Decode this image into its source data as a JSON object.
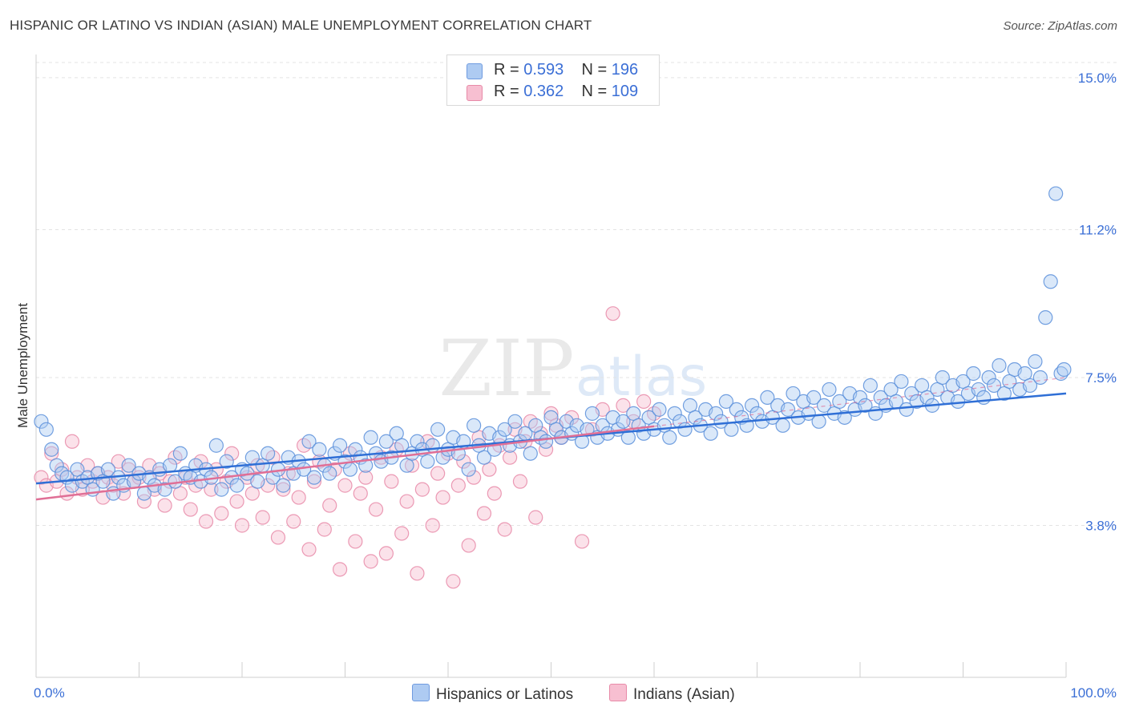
{
  "title": "HISPANIC OR LATINO VS INDIAN (ASIAN) MALE UNEMPLOYMENT CORRELATION CHART",
  "source": "Source: ZipAtlas.com",
  "watermark": {
    "zip": "ZIP",
    "atlas": "atlas"
  },
  "legend": {
    "r_label": "R =",
    "n_label": "N =",
    "rows": [
      {
        "r": "0.593",
        "n": "196",
        "fill": "#aecbf2",
        "stroke": "#6f9be0"
      },
      {
        "r": "0.362",
        "n": "109",
        "fill": "#f7bfd1",
        "stroke": "#e88aa8"
      }
    ]
  },
  "chart_data": {
    "type": "scatter",
    "ylabel": "Male Unemployment",
    "x_tick_labels": [
      "0.0%",
      "100.0%"
    ],
    "y_tick_labels": [
      "15.0%",
      "11.2%",
      "7.5%",
      "3.8%"
    ],
    "xlim": [
      0,
      100
    ],
    "ylim": [
      0,
      15.5
    ],
    "y_gridlines": [
      3.8,
      7.5,
      11.2,
      15.0
    ],
    "grid": true,
    "series": [
      {
        "name": "Hispanics or Latinos",
        "color": "#5b8fdb",
        "fill": "#aecbf2",
        "trend": {
          "x": [
            0,
            100
          ],
          "y": [
            4.85,
            7.1
          ],
          "color": "#2f6fd6"
        },
        "points": [
          [
            0.5,
            6.4
          ],
          [
            1.0,
            6.2
          ],
          [
            1.5,
            5.7
          ],
          [
            2.0,
            5.3
          ],
          [
            2.5,
            5.1
          ],
          [
            3.0,
            5.0
          ],
          [
            3.5,
            4.8
          ],
          [
            4.0,
            5.2
          ],
          [
            4.5,
            4.9
          ],
          [
            5.0,
            5.0
          ],
          [
            5.5,
            4.7
          ],
          [
            6.0,
            5.1
          ],
          [
            6.5,
            4.9
          ],
          [
            7.0,
            5.2
          ],
          [
            7.5,
            4.6
          ],
          [
            8.0,
            5.0
          ],
          [
            8.5,
            4.8
          ],
          [
            9.0,
            5.3
          ],
          [
            9.5,
            4.9
          ],
          [
            10.0,
            5.1
          ],
          [
            10.5,
            4.6
          ],
          [
            11.0,
            5.0
          ],
          [
            11.5,
            4.8
          ],
          [
            12.0,
            5.2
          ],
          [
            12.5,
            4.7
          ],
          [
            13.0,
            5.3
          ],
          [
            13.5,
            4.9
          ],
          [
            14.0,
            5.6
          ],
          [
            14.5,
            5.1
          ],
          [
            15.0,
            5.0
          ],
          [
            15.5,
            5.3
          ],
          [
            16.0,
            4.9
          ],
          [
            16.5,
            5.2
          ],
          [
            17.0,
            5.0
          ],
          [
            17.5,
            5.8
          ],
          [
            18.0,
            4.7
          ],
          [
            18.5,
            5.4
          ],
          [
            19.0,
            5.0
          ],
          [
            19.5,
            4.8
          ],
          [
            20.0,
            5.2
          ],
          [
            20.5,
            5.1
          ],
          [
            21.0,
            5.5
          ],
          [
            21.5,
            4.9
          ],
          [
            22.0,
            5.3
          ],
          [
            22.5,
            5.6
          ],
          [
            23.0,
            5.0
          ],
          [
            23.5,
            5.2
          ],
          [
            24.0,
            4.8
          ],
          [
            24.5,
            5.5
          ],
          [
            25.0,
            5.1
          ],
          [
            25.5,
            5.4
          ],
          [
            26.0,
            5.2
          ],
          [
            26.5,
            5.9
          ],
          [
            27.0,
            5.0
          ],
          [
            27.5,
            5.7
          ],
          [
            28.0,
            5.3
          ],
          [
            28.5,
            5.1
          ],
          [
            29.0,
            5.6
          ],
          [
            29.5,
            5.8
          ],
          [
            30.0,
            5.4
          ],
          [
            30.5,
            5.2
          ],
          [
            31.0,
            5.7
          ],
          [
            31.5,
            5.5
          ],
          [
            32.0,
            5.3
          ],
          [
            32.5,
            6.0
          ],
          [
            33.0,
            5.6
          ],
          [
            33.5,
            5.4
          ],
          [
            34.0,
            5.9
          ],
          [
            34.5,
            5.5
          ],
          [
            35.0,
            6.1
          ],
          [
            35.5,
            5.8
          ],
          [
            36.0,
            5.3
          ],
          [
            36.5,
            5.6
          ],
          [
            37.0,
            5.9
          ],
          [
            37.5,
            5.7
          ],
          [
            38.0,
            5.4
          ],
          [
            38.5,
            5.8
          ],
          [
            39.0,
            6.2
          ],
          [
            39.5,
            5.5
          ],
          [
            40.0,
            5.7
          ],
          [
            40.5,
            6.0
          ],
          [
            41.0,
            5.6
          ],
          [
            41.5,
            5.9
          ],
          [
            42.0,
            5.2
          ],
          [
            42.5,
            6.3
          ],
          [
            43.0,
            5.8
          ],
          [
            43.5,
            5.5
          ],
          [
            44.0,
            6.1
          ],
          [
            44.5,
            5.7
          ],
          [
            45.0,
            6.0
          ],
          [
            45.5,
            6.2
          ],
          [
            46.0,
            5.8
          ],
          [
            46.5,
            6.4
          ],
          [
            47.0,
            5.9
          ],
          [
            47.5,
            6.1
          ],
          [
            48.0,
            5.6
          ],
          [
            48.5,
            6.3
          ],
          [
            49.0,
            6.0
          ],
          [
            49.5,
            5.9
          ],
          [
            50.0,
            6.5
          ],
          [
            50.5,
            6.2
          ],
          [
            51.0,
            6.0
          ],
          [
            51.5,
            6.4
          ],
          [
            52.0,
            6.1
          ],
          [
            52.5,
            6.3
          ],
          [
            53.0,
            5.9
          ],
          [
            53.5,
            6.2
          ],
          [
            54.0,
            6.6
          ],
          [
            54.5,
            6.0
          ],
          [
            55.0,
            6.3
          ],
          [
            55.5,
            6.1
          ],
          [
            56.0,
            6.5
          ],
          [
            56.5,
            6.2
          ],
          [
            57.0,
            6.4
          ],
          [
            57.5,
            6.0
          ],
          [
            58.0,
            6.6
          ],
          [
            58.5,
            6.3
          ],
          [
            59.0,
            6.1
          ],
          [
            59.5,
            6.5
          ],
          [
            60.0,
            6.2
          ],
          [
            60.5,
            6.7
          ],
          [
            61.0,
            6.3
          ],
          [
            61.5,
            6.0
          ],
          [
            62.0,
            6.6
          ],
          [
            62.5,
            6.4
          ],
          [
            63.0,
            6.2
          ],
          [
            63.5,
            6.8
          ],
          [
            64.0,
            6.5
          ],
          [
            64.5,
            6.3
          ],
          [
            65.0,
            6.7
          ],
          [
            65.5,
            6.1
          ],
          [
            66.0,
            6.6
          ],
          [
            66.5,
            6.4
          ],
          [
            67.0,
            6.9
          ],
          [
            67.5,
            6.2
          ],
          [
            68.0,
            6.7
          ],
          [
            68.5,
            6.5
          ],
          [
            69.0,
            6.3
          ],
          [
            69.5,
            6.8
          ],
          [
            70.0,
            6.6
          ],
          [
            70.5,
            6.4
          ],
          [
            71.0,
            7.0
          ],
          [
            71.5,
            6.5
          ],
          [
            72.0,
            6.8
          ],
          [
            72.5,
            6.3
          ],
          [
            73.0,
            6.7
          ],
          [
            73.5,
            7.1
          ],
          [
            74.0,
            6.5
          ],
          [
            74.5,
            6.9
          ],
          [
            75.0,
            6.6
          ],
          [
            75.5,
            7.0
          ],
          [
            76.0,
            6.4
          ],
          [
            76.5,
            6.8
          ],
          [
            77.0,
            7.2
          ],
          [
            77.5,
            6.6
          ],
          [
            78.0,
            6.9
          ],
          [
            78.5,
            6.5
          ],
          [
            79.0,
            7.1
          ],
          [
            79.5,
            6.7
          ],
          [
            80.0,
            7.0
          ],
          [
            80.5,
            6.8
          ],
          [
            81.0,
            7.3
          ],
          [
            81.5,
            6.6
          ],
          [
            82.0,
            7.0
          ],
          [
            82.5,
            6.8
          ],
          [
            83.0,
            7.2
          ],
          [
            83.5,
            6.9
          ],
          [
            84.0,
            7.4
          ],
          [
            84.5,
            6.7
          ],
          [
            85.0,
            7.1
          ],
          [
            85.5,
            6.9
          ],
          [
            86.0,
            7.3
          ],
          [
            86.5,
            7.0
          ],
          [
            87.0,
            6.8
          ],
          [
            87.5,
            7.2
          ],
          [
            88.0,
            7.5
          ],
          [
            88.5,
            7.0
          ],
          [
            89.0,
            7.3
          ],
          [
            89.5,
            6.9
          ],
          [
            90.0,
            7.4
          ],
          [
            90.5,
            7.1
          ],
          [
            91.0,
            7.6
          ],
          [
            91.5,
            7.2
          ],
          [
            92.0,
            7.0
          ],
          [
            92.5,
            7.5
          ],
          [
            93.0,
            7.3
          ],
          [
            93.5,
            7.8
          ],
          [
            94.0,
            7.1
          ],
          [
            94.5,
            7.4
          ],
          [
            95.0,
            7.7
          ],
          [
            95.5,
            7.2
          ],
          [
            96.0,
            7.6
          ],
          [
            96.5,
            7.3
          ],
          [
            97.0,
            7.9
          ],
          [
            97.5,
            7.5
          ],
          [
            98.0,
            9.0
          ],
          [
            98.5,
            9.9
          ],
          [
            99.0,
            12.1
          ],
          [
            99.5,
            7.6
          ],
          [
            99.8,
            7.7
          ]
        ]
      },
      {
        "name": "Indians (Asian)",
        "color": "#e88aa8",
        "fill": "#f7bfd1",
        "trend": {
          "x": [
            0,
            100
          ],
          "y": [
            4.45,
            7.5
          ],
          "color": "#e06f96",
          "solid_until": 60
        },
        "points": [
          [
            0.5,
            5.0
          ],
          [
            1.0,
            4.8
          ],
          [
            1.5,
            5.6
          ],
          [
            2.0,
            4.9
          ],
          [
            2.5,
            5.2
          ],
          [
            3.0,
            4.6
          ],
          [
            3.5,
            5.9
          ],
          [
            4.0,
            5.0
          ],
          [
            4.5,
            4.7
          ],
          [
            5.0,
            5.3
          ],
          [
            5.5,
            4.9
          ],
          [
            6.0,
            5.1
          ],
          [
            6.5,
            4.5
          ],
          [
            7.0,
            5.0
          ],
          [
            7.5,
            4.8
          ],
          [
            8.0,
            5.4
          ],
          [
            8.5,
            4.6
          ],
          [
            9.0,
            5.2
          ],
          [
            9.5,
            4.9
          ],
          [
            10.0,
            5.0
          ],
          [
            10.5,
            4.4
          ],
          [
            11.0,
            5.3
          ],
          [
            11.5,
            4.7
          ],
          [
            12.0,
            5.1
          ],
          [
            12.5,
            4.3
          ],
          [
            13.0,
            4.9
          ],
          [
            13.5,
            5.5
          ],
          [
            14.0,
            4.6
          ],
          [
            14.5,
            5.0
          ],
          [
            15.0,
            4.2
          ],
          [
            15.5,
            4.8
          ],
          [
            16.0,
            5.4
          ],
          [
            16.5,
            3.9
          ],
          [
            17.0,
            4.7
          ],
          [
            17.5,
            5.2
          ],
          [
            18.0,
            4.1
          ],
          [
            18.5,
            4.9
          ],
          [
            19.0,
            5.6
          ],
          [
            19.5,
            4.4
          ],
          [
            20.0,
            3.8
          ],
          [
            20.5,
            5.0
          ],
          [
            21.0,
            4.6
          ],
          [
            21.5,
            5.3
          ],
          [
            22.0,
            4.0
          ],
          [
            22.5,
            4.8
          ],
          [
            23.0,
            5.5
          ],
          [
            23.5,
            3.5
          ],
          [
            24.0,
            4.7
          ],
          [
            24.5,
            5.1
          ],
          [
            25.0,
            3.9
          ],
          [
            25.5,
            4.5
          ],
          [
            26.0,
            5.8
          ],
          [
            26.5,
            3.2
          ],
          [
            27.0,
            4.9
          ],
          [
            27.5,
            5.4
          ],
          [
            28.0,
            3.7
          ],
          [
            28.5,
            4.3
          ],
          [
            29.0,
            5.2
          ],
          [
            29.5,
            2.7
          ],
          [
            30.0,
            4.8
          ],
          [
            30.5,
            5.6
          ],
          [
            31.0,
            3.4
          ],
          [
            31.5,
            4.6
          ],
          [
            32.0,
            5.0
          ],
          [
            32.5,
            2.9
          ],
          [
            33.0,
            4.2
          ],
          [
            33.5,
            5.5
          ],
          [
            34.0,
            3.1
          ],
          [
            34.5,
            4.9
          ],
          [
            35.0,
            5.7
          ],
          [
            35.5,
            3.6
          ],
          [
            36.0,
            4.4
          ],
          [
            36.5,
            5.3
          ],
          [
            37.0,
            2.6
          ],
          [
            37.5,
            4.7
          ],
          [
            38.0,
            5.9
          ],
          [
            38.5,
            3.8
          ],
          [
            39.0,
            5.1
          ],
          [
            39.5,
            4.5
          ],
          [
            40.0,
            5.6
          ],
          [
            40.5,
            2.4
          ],
          [
            41.0,
            4.8
          ],
          [
            41.5,
            5.4
          ],
          [
            42.0,
            3.3
          ],
          [
            42.5,
            5.0
          ],
          [
            43.0,
            6.0
          ],
          [
            43.5,
            4.1
          ],
          [
            44.0,
            5.2
          ],
          [
            44.5,
            4.6
          ],
          [
            45.0,
            5.8
          ],
          [
            45.5,
            3.7
          ],
          [
            46.0,
            5.5
          ],
          [
            46.5,
            6.2
          ],
          [
            47.0,
            4.9
          ],
          [
            47.5,
            5.9
          ],
          [
            48.0,
            6.4
          ],
          [
            48.5,
            4.0
          ],
          [
            49.0,
            6.1
          ],
          [
            49.5,
            5.7
          ],
          [
            50.0,
            6.6
          ],
          [
            50.5,
            6.3
          ],
          [
            51.0,
            6.0
          ],
          [
            52.0,
            6.5
          ],
          [
            53.0,
            3.4
          ],
          [
            54.0,
            6.2
          ],
          [
            55.0,
            6.7
          ],
          [
            56.0,
            9.1
          ],
          [
            57.0,
            6.8
          ],
          [
            58.0,
            6.4
          ],
          [
            59.0,
            6.9
          ],
          [
            60.0,
            6.6
          ]
        ]
      }
    ]
  }
}
